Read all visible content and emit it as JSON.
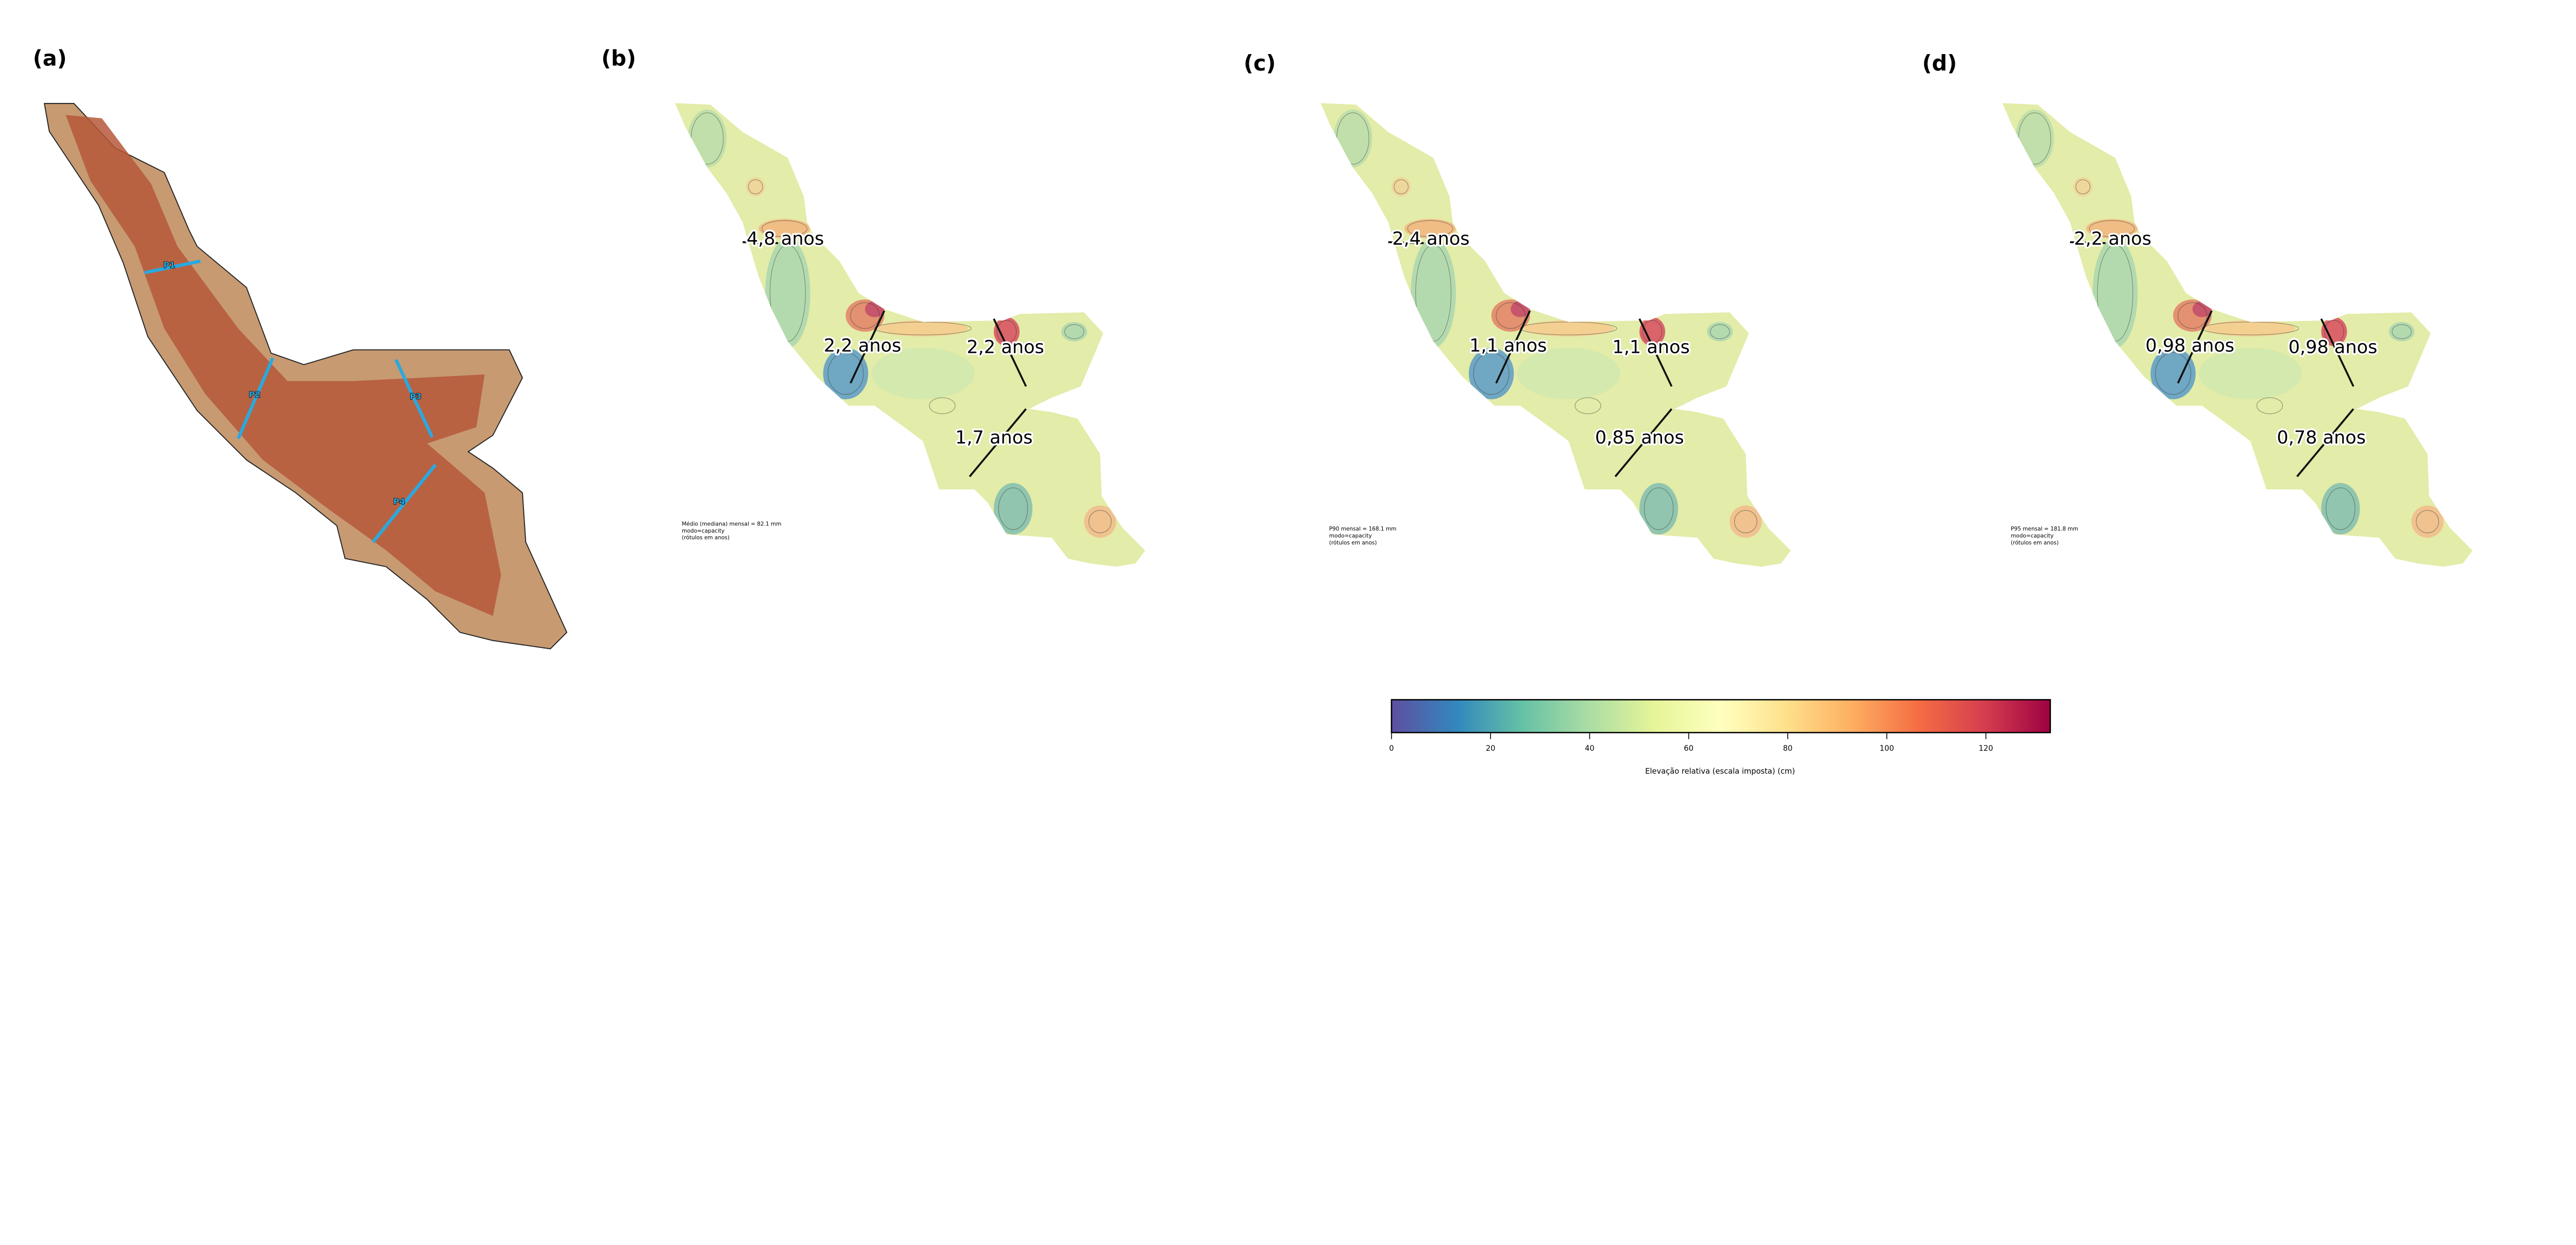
{
  "panels": [
    {
      "letter": "(a)",
      "sections": [
        {
          "name": "P1"
        },
        {
          "name": "P2"
        },
        {
          "name": "P3"
        },
        {
          "name": "P4"
        }
      ],
      "section_color": "#29a9e0"
    },
    {
      "letter": "(b)",
      "labels": [
        "4,8 anos",
        "2,2 anos",
        "2,2 anos",
        "1,7 anos"
      ],
      "note": [
        "Médio (mediana) mensal = 82.1 mm",
        "modo=capacity",
        "(rótulos em anos)"
      ]
    },
    {
      "letter": "(c)",
      "labels": [
        "2,4 anos",
        "1,1 anos",
        "1,1 anos",
        "0,85 anos"
      ],
      "note": [
        "P90 mensal = 168.1 mm",
        "modo=capacity",
        "(rótulos em anos)"
      ]
    },
    {
      "letter": "(d)",
      "labels": [
        "2,2 anos",
        "0,98 anos",
        "0,98 anos",
        "0,78 anos"
      ],
      "note": [
        "P95 mensal = 181.8 mm",
        "modo=capacity",
        "(rótulos em anos)"
      ]
    }
  ],
  "colorbar": {
    "label": "Elevação relativa (escala imposta) (cm)",
    "range": [
      0,
      133
    ],
    "ticks": [
      "0",
      "20",
      "40",
      "60",
      "80",
      "100",
      "120"
    ],
    "colormap": "Spectral_r",
    "stops": [
      "#5e4fa2",
      "#3288bd",
      "#66c2a5",
      "#abdda4",
      "#e6f598",
      "#ffffbf",
      "#fee08b",
      "#fdae61",
      "#f46d43",
      "#d53e4f",
      "#9e0142"
    ]
  }
}
